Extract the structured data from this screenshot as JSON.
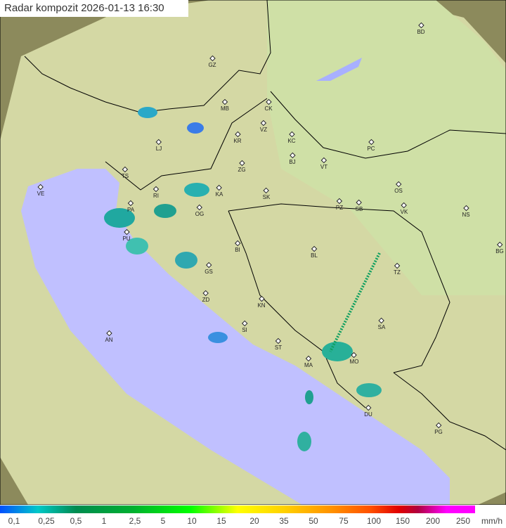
{
  "title": "Radar kompozit  2026-01-13   16:30",
  "colors": {
    "land": "#d8dca0",
    "sea": "#c0c0ff",
    "outside": "#8a8a60",
    "border": "#000000"
  },
  "cities": [
    "GZ",
    "BD",
    "MB",
    "CK",
    "VZ",
    "KR",
    "KC",
    "PC",
    "LJ",
    "BJ",
    "VT",
    "ZG",
    "TS",
    "VE",
    "RI",
    "KA",
    "SK",
    "OS",
    "PZ",
    "SB",
    "VK",
    "NS",
    "PA",
    "OG",
    "PU",
    "BI",
    "BL",
    "BG",
    "GS",
    "TZ",
    "ZD",
    "KN",
    "SA",
    "AN",
    "SI",
    "ST",
    "MA",
    "MO",
    "DU",
    "PG"
  ],
  "legend": {
    "labels": [
      "0,1",
      "0,25",
      "0,5",
      "1",
      "2,5",
      "5",
      "10",
      "15",
      "20",
      "35",
      "50",
      "75",
      "100",
      "150",
      "200",
      "250"
    ],
    "unit": "mm/h"
  }
}
